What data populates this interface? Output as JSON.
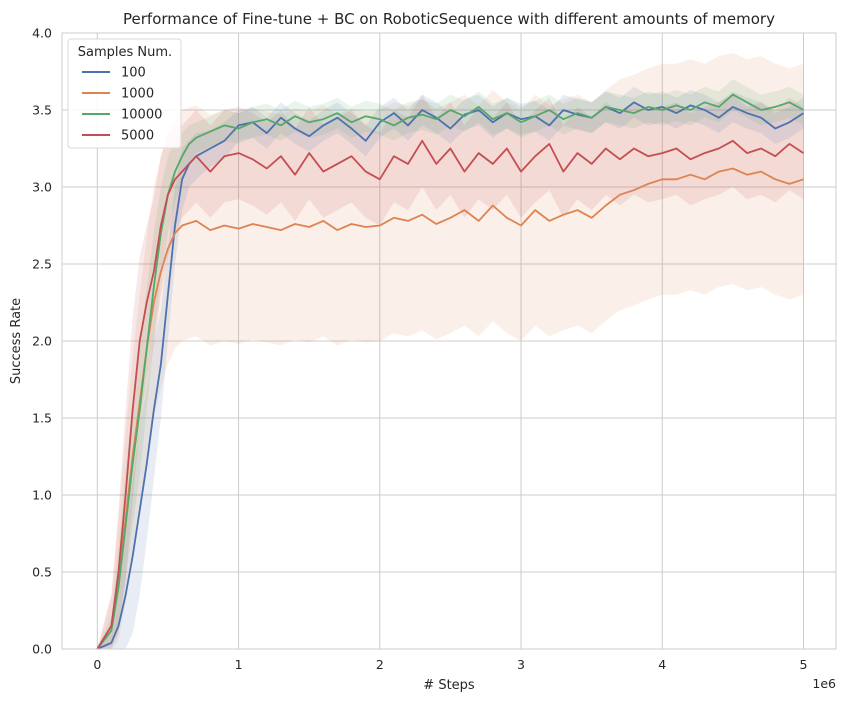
{
  "chart_data": {
    "type": "line",
    "title": "Performance of Fine-tune + BC on RoboticSequence with different amounts of memory",
    "xlabel": "# Steps",
    "ylabel": "Success Rate",
    "x_offset_label": "1e6",
    "xlim": [
      -0.25,
      5.23
    ],
    "ylim": [
      0.0,
      4.0
    ],
    "x_ticks": [
      0,
      1,
      2,
      3,
      4,
      5
    ],
    "x_tick_labels": [
      "0",
      "1",
      "2",
      "3",
      "4",
      "5"
    ],
    "y_ticks": [
      0.0,
      0.5,
      1.0,
      1.5,
      2.0,
      2.5,
      3.0,
      3.5,
      4.0
    ],
    "y_tick_labels": [
      "0.0",
      "0.5",
      "1.0",
      "1.5",
      "2.0",
      "2.5",
      "3.0",
      "3.5",
      "4.0"
    ],
    "grid": true,
    "legend": {
      "title": "Samples Num.",
      "placement": "top-left"
    },
    "series": [
      {
        "name": "100",
        "color": "#4c72b0",
        "x": [
          0,
          0.1,
          0.15,
          0.2,
          0.25,
          0.3,
          0.35,
          0.4,
          0.45,
          0.5,
          0.55,
          0.6,
          0.65,
          0.7,
          0.8,
          0.9,
          1.0,
          1.1,
          1.2,
          1.3,
          1.4,
          1.5,
          1.6,
          1.7,
          1.8,
          1.9,
          2.0,
          2.1,
          2.2,
          2.3,
          2.4,
          2.5,
          2.6,
          2.7,
          2.8,
          2.9,
          3.0,
          3.1,
          3.2,
          3.3,
          3.4,
          3.5,
          3.6,
          3.7,
          3.8,
          3.9,
          4.0,
          4.1,
          4.2,
          4.3,
          4.4,
          4.5,
          4.6,
          4.7,
          4.8,
          4.9,
          5.0
        ],
        "y": [
          0.0,
          0.04,
          0.15,
          0.35,
          0.6,
          0.9,
          1.2,
          1.55,
          1.85,
          2.3,
          2.75,
          3.05,
          3.15,
          3.2,
          3.25,
          3.3,
          3.4,
          3.42,
          3.35,
          3.45,
          3.38,
          3.33,
          3.4,
          3.45,
          3.38,
          3.3,
          3.42,
          3.48,
          3.4,
          3.5,
          3.45,
          3.38,
          3.47,
          3.5,
          3.42,
          3.48,
          3.44,
          3.46,
          3.4,
          3.5,
          3.47,
          3.45,
          3.52,
          3.48,
          3.55,
          3.5,
          3.52,
          3.48,
          3.53,
          3.5,
          3.45,
          3.52,
          3.48,
          3.45,
          3.38,
          3.42,
          3.48
        ],
        "band": [
          0.0,
          0.08,
          0.25,
          0.4,
          0.5,
          0.55,
          0.5,
          0.45,
          0.35,
          0.3,
          0.25,
          0.2,
          0.15,
          0.15,
          0.12,
          0.12,
          0.1,
          0.1,
          0.1,
          0.1,
          0.1,
          0.1,
          0.1,
          0.1,
          0.1,
          0.1,
          0.1,
          0.1,
          0.1,
          0.1,
          0.1,
          0.1,
          0.1,
          0.1,
          0.1,
          0.1,
          0.1,
          0.1,
          0.1,
          0.1,
          0.1,
          0.1,
          0.1,
          0.1,
          0.1,
          0.1,
          0.1,
          0.1,
          0.1,
          0.1,
          0.1,
          0.1,
          0.1,
          0.1,
          0.1,
          0.1,
          0.1
        ]
      },
      {
        "name": "1000",
        "color": "#dd8452",
        "x": [
          0,
          0.1,
          0.15,
          0.2,
          0.25,
          0.3,
          0.35,
          0.4,
          0.45,
          0.5,
          0.55,
          0.6,
          0.7,
          0.8,
          0.9,
          1.0,
          1.1,
          1.2,
          1.3,
          1.4,
          1.5,
          1.6,
          1.7,
          1.8,
          1.9,
          2.0,
          2.1,
          2.2,
          2.3,
          2.4,
          2.5,
          2.6,
          2.7,
          2.8,
          2.9,
          3.0,
          3.1,
          3.2,
          3.3,
          3.4,
          3.5,
          3.6,
          3.7,
          3.8,
          3.9,
          4.0,
          4.1,
          4.2,
          4.3,
          4.4,
          4.5,
          4.6,
          4.7,
          4.8,
          4.9,
          5.0
        ],
        "y": [
          0.0,
          0.15,
          0.45,
          0.85,
          1.25,
          1.6,
          1.95,
          2.25,
          2.45,
          2.6,
          2.7,
          2.75,
          2.78,
          2.72,
          2.75,
          2.73,
          2.76,
          2.74,
          2.72,
          2.76,
          2.74,
          2.78,
          2.72,
          2.76,
          2.74,
          2.75,
          2.8,
          2.78,
          2.82,
          2.76,
          2.8,
          2.85,
          2.78,
          2.88,
          2.8,
          2.75,
          2.85,
          2.78,
          2.82,
          2.85,
          2.8,
          2.88,
          2.95,
          2.98,
          3.02,
          3.05,
          3.05,
          3.08,
          3.05,
          3.1,
          3.12,
          3.08,
          3.1,
          3.05,
          3.02,
          3.05
        ],
        "band": [
          0.0,
          0.2,
          0.4,
          0.55,
          0.65,
          0.7,
          0.72,
          0.75,
          0.75,
          0.75,
          0.75,
          0.75,
          0.75,
          0.75,
          0.75,
          0.75,
          0.75,
          0.75,
          0.75,
          0.75,
          0.75,
          0.75,
          0.75,
          0.75,
          0.75,
          0.75,
          0.75,
          0.75,
          0.75,
          0.75,
          0.75,
          0.75,
          0.75,
          0.75,
          0.75,
          0.75,
          0.75,
          0.75,
          0.75,
          0.75,
          0.75,
          0.75,
          0.75,
          0.75,
          0.75,
          0.75,
          0.75,
          0.75,
          0.75,
          0.75,
          0.75,
          0.75,
          0.75,
          0.75,
          0.75,
          0.75
        ]
      },
      {
        "name": "10000",
        "color": "#55a868",
        "x": [
          0,
          0.1,
          0.15,
          0.2,
          0.25,
          0.3,
          0.35,
          0.4,
          0.45,
          0.5,
          0.55,
          0.6,
          0.65,
          0.7,
          0.8,
          0.9,
          1.0,
          1.1,
          1.2,
          1.3,
          1.4,
          1.5,
          1.6,
          1.7,
          1.8,
          1.9,
          2.0,
          2.1,
          2.2,
          2.3,
          2.4,
          2.5,
          2.6,
          2.7,
          2.8,
          2.9,
          3.0,
          3.1,
          3.2,
          3.3,
          3.4,
          3.5,
          3.6,
          3.7,
          3.8,
          3.9,
          4.0,
          4.1,
          4.2,
          4.3,
          4.4,
          4.5,
          4.6,
          4.7,
          4.8,
          4.9,
          5.0
        ],
        "y": [
          0.0,
          0.12,
          0.4,
          0.8,
          1.2,
          1.55,
          1.95,
          2.35,
          2.7,
          2.95,
          3.1,
          3.2,
          3.28,
          3.32,
          3.36,
          3.4,
          3.38,
          3.42,
          3.44,
          3.4,
          3.46,
          3.42,
          3.44,
          3.48,
          3.42,
          3.46,
          3.44,
          3.4,
          3.45,
          3.47,
          3.44,
          3.5,
          3.46,
          3.52,
          3.44,
          3.48,
          3.42,
          3.46,
          3.5,
          3.44,
          3.48,
          3.45,
          3.52,
          3.5,
          3.48,
          3.52,
          3.5,
          3.53,
          3.5,
          3.55,
          3.52,
          3.6,
          3.55,
          3.5,
          3.52,
          3.55,
          3.5
        ],
        "band": [
          0.0,
          0.1,
          0.25,
          0.35,
          0.4,
          0.42,
          0.4,
          0.35,
          0.3,
          0.25,
          0.2,
          0.15,
          0.12,
          0.1,
          0.1,
          0.1,
          0.1,
          0.1,
          0.1,
          0.1,
          0.1,
          0.1,
          0.1,
          0.1,
          0.1,
          0.1,
          0.1,
          0.1,
          0.1,
          0.1,
          0.1,
          0.1,
          0.1,
          0.1,
          0.1,
          0.1,
          0.1,
          0.1,
          0.1,
          0.1,
          0.1,
          0.1,
          0.1,
          0.1,
          0.1,
          0.1,
          0.1,
          0.1,
          0.1,
          0.1,
          0.1,
          0.1,
          0.1,
          0.1,
          0.1,
          0.1,
          0.1
        ]
      },
      {
        "name": "5000",
        "color": "#c44e52",
        "x": [
          0,
          0.1,
          0.15,
          0.2,
          0.25,
          0.3,
          0.35,
          0.4,
          0.45,
          0.5,
          0.55,
          0.6,
          0.65,
          0.7,
          0.8,
          0.9,
          1.0,
          1.1,
          1.2,
          1.3,
          1.4,
          1.5,
          1.6,
          1.7,
          1.8,
          1.9,
          2.0,
          2.1,
          2.2,
          2.3,
          2.4,
          2.5,
          2.6,
          2.7,
          2.8,
          2.9,
          3.0,
          3.1,
          3.2,
          3.3,
          3.4,
          3.5,
          3.6,
          3.7,
          3.8,
          3.9,
          4.0,
          4.1,
          4.2,
          4.3,
          4.4,
          4.5,
          4.6,
          4.7,
          4.8,
          4.9,
          5.0
        ],
        "y": [
          0.0,
          0.15,
          0.5,
          1.0,
          1.55,
          2.0,
          2.25,
          2.45,
          2.75,
          2.95,
          3.05,
          3.1,
          3.15,
          3.2,
          3.1,
          3.2,
          3.22,
          3.18,
          3.12,
          3.2,
          3.08,
          3.22,
          3.1,
          3.15,
          3.2,
          3.1,
          3.05,
          3.2,
          3.15,
          3.3,
          3.15,
          3.25,
          3.1,
          3.22,
          3.15,
          3.25,
          3.1,
          3.2,
          3.28,
          3.1,
          3.22,
          3.15,
          3.25,
          3.18,
          3.25,
          3.2,
          3.22,
          3.25,
          3.18,
          3.22,
          3.25,
          3.3,
          3.22,
          3.25,
          3.2,
          3.28,
          3.22
        ],
        "band": [
          0.0,
          0.2,
          0.4,
          0.55,
          0.6,
          0.55,
          0.5,
          0.48,
          0.45,
          0.4,
          0.35,
          0.3,
          0.3,
          0.3,
          0.3,
          0.3,
          0.3,
          0.3,
          0.3,
          0.3,
          0.3,
          0.3,
          0.3,
          0.3,
          0.3,
          0.3,
          0.3,
          0.3,
          0.3,
          0.3,
          0.3,
          0.3,
          0.3,
          0.3,
          0.3,
          0.3,
          0.3,
          0.3,
          0.3,
          0.3,
          0.3,
          0.3,
          0.3,
          0.3,
          0.3,
          0.3,
          0.3,
          0.3,
          0.3,
          0.3,
          0.3,
          0.3,
          0.3,
          0.3,
          0.3,
          0.3,
          0.3
        ]
      }
    ]
  }
}
